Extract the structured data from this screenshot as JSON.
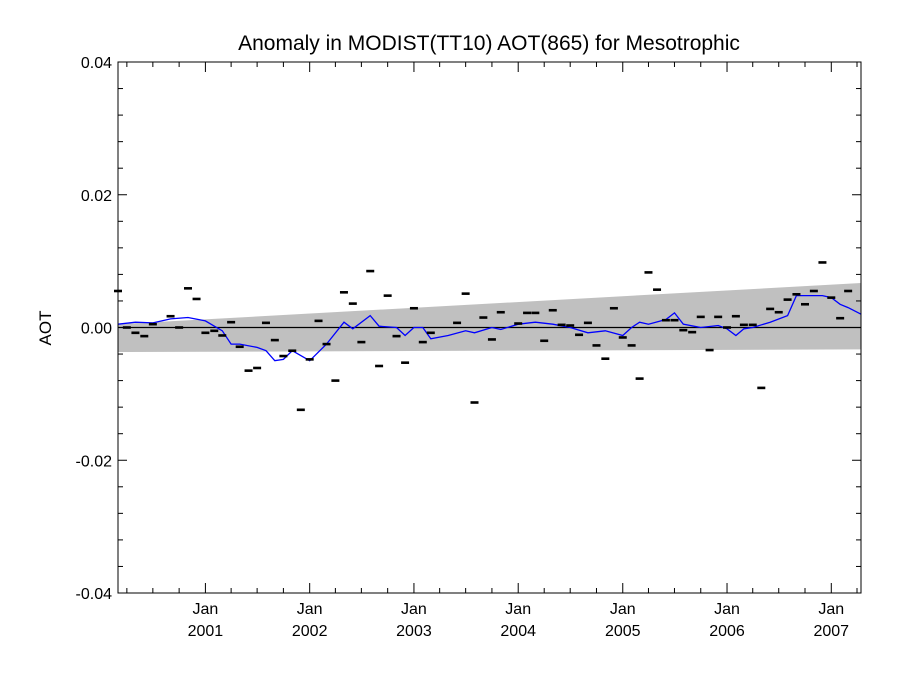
{
  "chart_data": {
    "type": "scatter",
    "title": "Anomaly in MODIST(TT10) AOT(865) for Mesotrophic",
    "xlabel": "",
    "ylabel": "AOT",
    "xlim": [
      "2000-03-01",
      "2007-04-15"
    ],
    "ylim": [
      -0.04,
      0.04
    ],
    "yticks": [
      "-0.04",
      "-0.02",
      "0.00",
      "0.02",
      "0.04"
    ],
    "xticks": [
      {
        "month": "Jan",
        "year": "2001",
        "date": "2001-01-01"
      },
      {
        "month": "Jan",
        "year": "2002",
        "date": "2002-01-01"
      },
      {
        "month": "Jan",
        "year": "2003",
        "date": "2003-01-01"
      },
      {
        "month": "Jan",
        "year": "2004",
        "date": "2004-01-01"
      },
      {
        "month": "Jan",
        "year": "2005",
        "date": "2005-01-01"
      },
      {
        "month": "Jan",
        "year": "2006",
        "date": "2006-01-01"
      },
      {
        "month": "Jan",
        "year": "2007",
        "date": "2007-01-01"
      }
    ],
    "grid": false,
    "colors": {
      "points": "#000000",
      "smooth_line": "#0000ff",
      "band": "#c0c0c0",
      "zero_line": "#000000"
    },
    "zero_line": 0.0,
    "trend_band": {
      "x": [
        "2000-03-01",
        "2007-04-15"
      ],
      "upper": [
        0.0005,
        0.0067
      ],
      "lower": [
        -0.0037,
        -0.0033
      ]
    },
    "monthly_anomalies": [
      {
        "x": "2000-03-01",
        "y": 0.0055
      },
      {
        "x": "2000-04-01",
        "y": 0.0
      },
      {
        "x": "2000-05-01",
        "y": -0.0008
      },
      {
        "x": "2000-06-01",
        "y": -0.0013
      },
      {
        "x": "2000-07-01",
        "y": 0.0005
      },
      {
        "x": "2000-09-01",
        "y": 0.0017
      },
      {
        "x": "2000-10-01",
        "y": 0.0
      },
      {
        "x": "2000-11-01",
        "y": 0.0059
      },
      {
        "x": "2000-12-01",
        "y": 0.0043
      },
      {
        "x": "2001-01-01",
        "y": -0.0008
      },
      {
        "x": "2001-02-01",
        "y": -0.0005
      },
      {
        "x": "2001-03-01",
        "y": -0.0012
      },
      {
        "x": "2001-04-01",
        "y": 0.0008
      },
      {
        "x": "2001-05-01",
        "y": -0.0029
      },
      {
        "x": "2001-06-01",
        "y": -0.0065
      },
      {
        "x": "2001-07-01",
        "y": -0.0061
      },
      {
        "x": "2001-08-01",
        "y": 0.0007
      },
      {
        "x": "2001-09-01",
        "y": -0.0019
      },
      {
        "x": "2001-10-01",
        "y": -0.0043
      },
      {
        "x": "2001-11-01",
        "y": -0.0035
      },
      {
        "x": "2001-12-01",
        "y": -0.0124
      },
      {
        "x": "2002-01-01",
        "y": -0.0048
      },
      {
        "x": "2002-02-01",
        "y": 0.001
      },
      {
        "x": "2002-03-01",
        "y": -0.0025
      },
      {
        "x": "2002-04-01",
        "y": -0.008
      },
      {
        "x": "2002-05-01",
        "y": 0.0053
      },
      {
        "x": "2002-06-01",
        "y": 0.0036
      },
      {
        "x": "2002-07-01",
        "y": -0.0022
      },
      {
        "x": "2002-08-01",
        "y": 0.0085
      },
      {
        "x": "2002-09-01",
        "y": -0.0058
      },
      {
        "x": "2002-10-01",
        "y": 0.0048
      },
      {
        "x": "2002-11-01",
        "y": -0.0013
      },
      {
        "x": "2002-12-01",
        "y": -0.0053
      },
      {
        "x": "2003-01-01",
        "y": 0.0029
      },
      {
        "x": "2003-02-01",
        "y": -0.0022
      },
      {
        "x": "2003-03-01",
        "y": -0.0008
      },
      {
        "x": "2003-06-01",
        "y": 0.0007
      },
      {
        "x": "2003-07-01",
        "y": 0.0051
      },
      {
        "x": "2003-08-01",
        "y": -0.0113
      },
      {
        "x": "2003-09-01",
        "y": 0.0015
      },
      {
        "x": "2003-10-01",
        "y": -0.0018
      },
      {
        "x": "2003-11-01",
        "y": 0.0023
      },
      {
        "x": "2004-01-01",
        "y": 0.0006
      },
      {
        "x": "2004-02-01",
        "y": 0.0022
      },
      {
        "x": "2004-03-01",
        "y": 0.0022
      },
      {
        "x": "2004-04-01",
        "y": -0.002
      },
      {
        "x": "2004-05-01",
        "y": 0.0026
      },
      {
        "x": "2004-06-01",
        "y": 0.0004
      },
      {
        "x": "2004-07-01",
        "y": 0.0003
      },
      {
        "x": "2004-08-01",
        "y": -0.0011
      },
      {
        "x": "2004-09-01",
        "y": 0.0007
      },
      {
        "x": "2004-10-01",
        "y": -0.0027
      },
      {
        "x": "2004-11-01",
        "y": -0.0047
      },
      {
        "x": "2004-12-01",
        "y": 0.0029
      },
      {
        "x": "2005-01-01",
        "y": -0.0015
      },
      {
        "x": "2005-02-01",
        "y": -0.0027
      },
      {
        "x": "2005-03-01",
        "y": -0.0077
      },
      {
        "x": "2005-04-01",
        "y": 0.0083
      },
      {
        "x": "2005-05-01",
        "y": 0.0057
      },
      {
        "x": "2005-06-01",
        "y": 0.0011
      },
      {
        "x": "2005-07-01",
        "y": 0.0011
      },
      {
        "x": "2005-08-01",
        "y": -0.0004
      },
      {
        "x": "2005-09-01",
        "y": -0.0007
      },
      {
        "x": "2005-10-01",
        "y": 0.0016
      },
      {
        "x": "2005-11-01",
        "y": -0.0034
      },
      {
        "x": "2005-12-01",
        "y": 0.0016
      },
      {
        "x": "2006-01-01",
        "y": 0.0
      },
      {
        "x": "2006-02-01",
        "y": 0.0017
      },
      {
        "x": "2006-03-01",
        "y": 0.0004
      },
      {
        "x": "2006-04-01",
        "y": 0.0004
      },
      {
        "x": "2006-05-01",
        "y": -0.0091
      },
      {
        "x": "2006-06-01",
        "y": 0.0028
      },
      {
        "x": "2006-07-01",
        "y": 0.0023
      },
      {
        "x": "2006-08-01",
        "y": 0.0042
      },
      {
        "x": "2006-09-01",
        "y": 0.005
      },
      {
        "x": "2006-10-01",
        "y": 0.0035
      },
      {
        "x": "2006-11-01",
        "y": 0.0055
      },
      {
        "x": "2006-12-01",
        "y": 0.0098
      },
      {
        "x": "2007-01-01",
        "y": 0.0045
      },
      {
        "x": "2007-02-01",
        "y": 0.0014
      },
      {
        "x": "2007-03-01",
        "y": 0.0055
      }
    ],
    "smoothed_anomaly": [
      {
        "x": "2000-03-01",
        "y": 0.0005
      },
      {
        "x": "2000-05-01",
        "y": 0.0008
      },
      {
        "x": "2000-07-01",
        "y": 0.0007
      },
      {
        "x": "2000-09-01",
        "y": 0.0013
      },
      {
        "x": "2000-11-01",
        "y": 0.0015
      },
      {
        "x": "2001-01-01",
        "y": 0.001
      },
      {
        "x": "2001-03-01",
        "y": -0.0005
      },
      {
        "x": "2001-04-01",
        "y": -0.0025
      },
      {
        "x": "2001-05-01",
        "y": -0.0025
      },
      {
        "x": "2001-07-01",
        "y": -0.003
      },
      {
        "x": "2001-08-01",
        "y": -0.0035
      },
      {
        "x": "2001-09-01",
        "y": -0.005
      },
      {
        "x": "2001-10-01",
        "y": -0.0048
      },
      {
        "x": "2001-11-01",
        "y": -0.0035
      },
      {
        "x": "2002-01-01",
        "y": -0.005
      },
      {
        "x": "2002-03-01",
        "y": -0.0025
      },
      {
        "x": "2002-05-01",
        "y": 0.0008
      },
      {
        "x": "2002-06-01",
        "y": -0.0002
      },
      {
        "x": "2002-08-01",
        "y": 0.0018
      },
      {
        "x": "2002-09-01",
        "y": 0.0002
      },
      {
        "x": "2002-11-01",
        "y": 0.0
      },
      {
        "x": "2002-12-01",
        "y": -0.0012
      },
      {
        "x": "2003-01-01",
        "y": 0.0
      },
      {
        "x": "2003-02-01",
        "y": 0.0
      },
      {
        "x": "2003-03-01",
        "y": -0.0017
      },
      {
        "x": "2003-05-01",
        "y": -0.0012
      },
      {
        "x": "2003-07-01",
        "y": -0.0005
      },
      {
        "x": "2003-08-01",
        "y": -0.0008
      },
      {
        "x": "2003-10-01",
        "y": 0.0
      },
      {
        "x": "2003-11-01",
        "y": -0.0003
      },
      {
        "x": "2004-01-01",
        "y": 0.0005
      },
      {
        "x": "2004-03-01",
        "y": 0.0008
      },
      {
        "x": "2004-05-01",
        "y": 0.0005
      },
      {
        "x": "2004-07-01",
        "y": 0.0
      },
      {
        "x": "2004-09-01",
        "y": -0.0008
      },
      {
        "x": "2004-11-01",
        "y": -0.0005
      },
      {
        "x": "2005-01-01",
        "y": -0.0012
      },
      {
        "x": "2005-02-01",
        "y": 0.0
      },
      {
        "x": "2005-03-01",
        "y": 0.0008
      },
      {
        "x": "2005-04-01",
        "y": 0.0005
      },
      {
        "x": "2005-06-01",
        "y": 0.0012
      },
      {
        "x": "2005-07-01",
        "y": 0.0022
      },
      {
        "x": "2005-08-01",
        "y": 0.0005
      },
      {
        "x": "2005-10-01",
        "y": 0.0
      },
      {
        "x": "2005-12-01",
        "y": 0.0003
      },
      {
        "x": "2006-01-01",
        "y": -0.0002
      },
      {
        "x": "2006-02-01",
        "y": -0.0012
      },
      {
        "x": "2006-03-01",
        "y": -0.0002
      },
      {
        "x": "2006-04-01",
        "y": 0.0
      },
      {
        "x": "2006-06-01",
        "y": 0.0008
      },
      {
        "x": "2006-08-01",
        "y": 0.0018
      },
      {
        "x": "2006-09-01",
        "y": 0.0048
      },
      {
        "x": "2006-11-01",
        "y": 0.0048
      },
      {
        "x": "2006-12-01",
        "y": 0.0048
      },
      {
        "x": "2007-01-01",
        "y": 0.0045
      },
      {
        "x": "2007-02-01",
        "y": 0.0035
      },
      {
        "x": "2007-03-01",
        "y": 0.003
      },
      {
        "x": "2007-04-15",
        "y": 0.002
      }
    ]
  }
}
